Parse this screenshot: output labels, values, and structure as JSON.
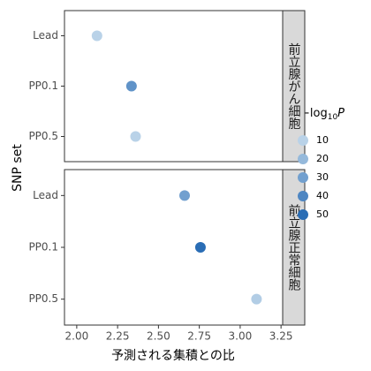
{
  "chart_data": {
    "type": "scatter",
    "x_label": "予測される集積との比",
    "y_label": "SNP set",
    "categories": [
      "Lead",
      "PP0.1",
      "PP0.5"
    ],
    "xlim": [
      1.925,
      3.26
    ],
    "xticks": [
      {
        "value": 2,
        "label": "2.00"
      },
      {
        "value": 2.25,
        "label": "2.25"
      },
      {
        "value": 2.5,
        "label": "2.50"
      },
      {
        "value": 2.75,
        "label": "2.75"
      },
      {
        "value": 3,
        "label": "3.00"
      },
      {
        "value": 3.25,
        "label": "3.25"
      }
    ],
    "panels": [
      {
        "strip": "前立腺がん細胞",
        "x": [
          2.124,
          2.335,
          2.36
        ],
        "color_values": [
          10,
          35,
          8
        ]
      },
      {
        "strip": "前立腺正常細胞",
        "x": [
          2.66,
          2.757,
          3.1
        ],
        "color_values": [
          30,
          52,
          12
        ]
      }
    ],
    "color_scale": {
      "domain": [
        10,
        50
      ],
      "colors": [
        "#b9d2e8",
        "#2a6db5"
      ]
    },
    "legend": {
      "title": {
        "main": "−log",
        "sub": "10",
        "var": "P"
      },
      "values": [
        10,
        20,
        30,
        40,
        50
      ]
    }
  }
}
